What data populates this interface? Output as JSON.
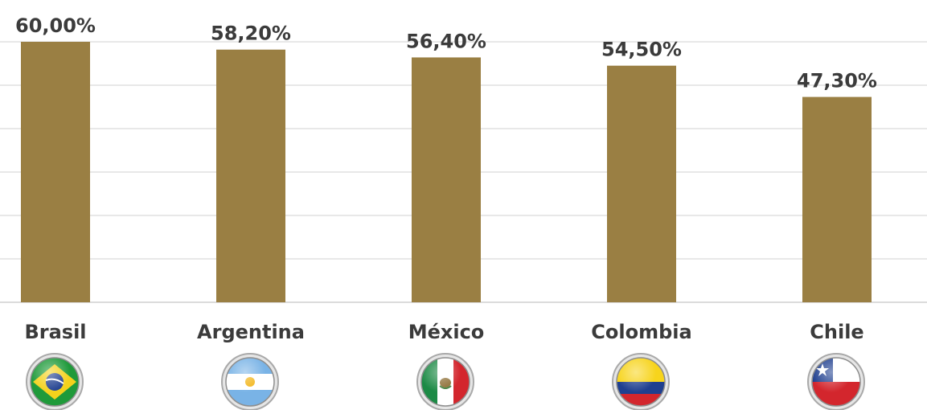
{
  "chart_data": {
    "type": "bar",
    "categories": [
      "Brasil",
      "Argentina",
      "México",
      "Colombia",
      "Chile"
    ],
    "values": [
      60.0,
      58.2,
      56.4,
      54.5,
      47.3
    ],
    "data_labels": [
      "60,00%",
      "58,20%",
      "56,40%",
      "54,50%",
      "47,30%"
    ],
    "ylim": [
      0,
      60
    ],
    "grid": true,
    "legend": "none",
    "bar_color": "#9a7f43",
    "flag_icons": [
      "brazil-flag-icon",
      "argentina-flag-icon",
      "mexico-flag-icon",
      "colombia-flag-icon",
      "chile-flag-icon"
    ]
  }
}
